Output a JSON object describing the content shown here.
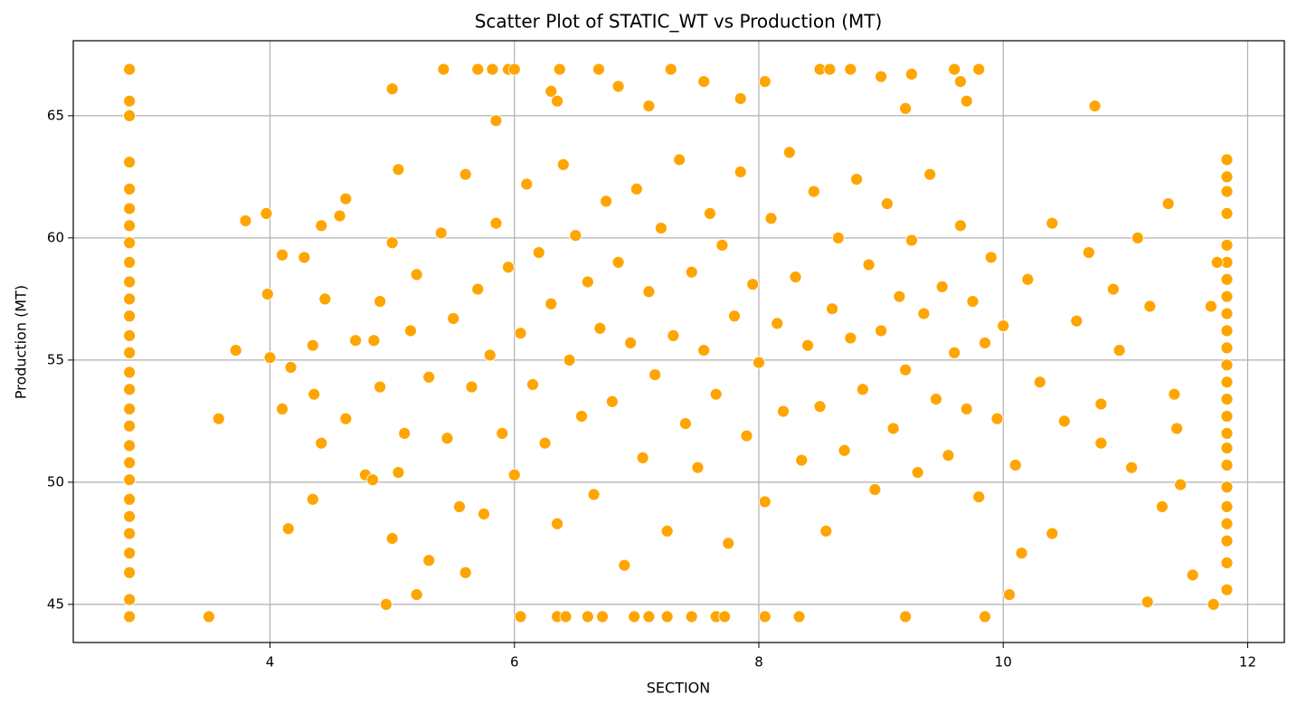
{
  "chart_data": {
    "type": "scatter",
    "title": "Scatter Plot of STATIC_WT vs Production (MT)",
    "x_label": "SECTION",
    "y_label": "Production (MT)",
    "color": "#ffa500",
    "grid": true,
    "xlim": [
      2.39,
      12.3
    ],
    "xticks": [
      4,
      6,
      8,
      10,
      12
    ],
    "ylim": [
      43.44,
      68.07
    ],
    "yticks": [
      45,
      50,
      55,
      60,
      65
    ],
    "x": [
      2.85,
      2.85,
      2.85,
      2.85,
      2.85,
      2.85,
      2.85,
      2.85,
      2.85,
      2.85,
      2.85,
      2.85,
      2.85,
      2.85,
      2.85,
      2.85,
      2.85,
      2.85,
      2.85,
      2.85,
      2.85,
      2.85,
      2.85,
      2.85,
      2.85,
      2.85,
      2.85,
      2.85,
      11.83,
      11.83,
      11.83,
      11.83,
      11.83,
      11.83,
      11.83,
      11.83,
      11.83,
      11.83,
      11.83,
      11.83,
      11.83,
      11.83,
      11.83,
      11.83,
      11.83,
      11.83,
      11.83,
      11.83,
      11.83,
      11.83,
      11.83,
      11.83,
      3.5,
      6.05,
      6.35,
      6.42,
      6.6,
      6.72,
      6.98,
      7.1,
      7.25,
      7.45,
      7.65,
      7.72,
      8.05,
      8.33,
      9.2,
      9.85,
      5.42,
      5.7,
      5.82,
      5.95,
      6.0,
      6.37,
      6.69,
      7.28,
      8.5,
      8.58,
      8.75,
      9.6,
      9.8,
      3.58,
      3.72,
      3.8,
      3.97,
      3.98,
      4.0,
      4.1,
      4.1,
      4.15,
      4.17,
      4.28,
      4.35,
      4.36,
      4.35,
      4.42,
      4.42,
      4.45,
      4.57,
      4.62,
      4.62,
      4.7,
      4.78,
      4.84,
      4.9,
      4.95,
      5.0,
      5.05,
      5.0,
      5.2,
      5.3,
      5.6,
      10.05,
      10.15,
      10.4,
      10.75,
      11.18,
      11.3,
      11.35,
      11.45,
      11.55,
      11.7,
      11.72,
      11.75,
      10.8,
      10.95,
      11.05,
      11.1,
      11.2,
      11.4,
      11.42,
      9.0,
      9.25,
      9.65,
      8.05,
      7.55,
      6.85,
      6.3,
      7.1,
      9.2,
      9.7,
      7.85,
      6.35,
      5.85,
      5.2,
      5.3,
      5.4,
      5.45,
      5.5,
      5.55,
      5.6,
      5.65,
      5.7,
      5.75,
      5.8,
      5.85,
      5.9,
      5.95,
      6.0,
      6.05,
      6.1,
      6.15,
      6.2,
      6.25,
      6.3,
      6.35,
      6.4,
      6.45,
      6.5,
      6.55,
      6.6,
      6.65,
      6.7,
      6.75,
      6.8,
      6.85,
      6.9,
      6.95,
      7.0,
      7.05,
      7.1,
      7.15,
      7.2,
      7.25,
      7.3,
      7.35,
      7.4,
      7.45,
      7.5,
      7.55,
      7.6,
      7.65,
      7.7,
      7.75,
      7.8,
      7.85,
      7.9,
      7.95,
      8.0,
      8.05,
      8.1,
      8.15,
      8.2,
      8.25,
      8.3,
      8.35,
      8.4,
      8.45,
      8.5,
      8.55,
      8.6,
      8.65,
      8.7,
      8.75,
      8.8,
      8.85,
      8.9,
      8.95,
      9.0,
      9.05,
      9.1,
      9.15,
      9.2,
      9.25,
      9.3,
      9.35,
      9.4,
      9.45,
      9.5,
      9.55,
      9.6,
      9.65,
      9.7,
      9.75,
      9.8,
      9.85,
      9.9,
      9.95,
      10.0,
      10.1,
      10.2,
      10.3,
      10.4,
      10.5,
      10.6,
      10.7,
      10.8,
      10.9,
      5.1,
      5.15,
      5.0,
      4.9,
      4.85,
      5.05
    ],
    "y": [
      66.9,
      65.6,
      65.0,
      63.1,
      62.0,
      61.2,
      60.5,
      59.8,
      59.0,
      58.2,
      57.5,
      56.8,
      56.0,
      55.3,
      54.5,
      53.8,
      53.0,
      52.3,
      51.5,
      50.8,
      50.1,
      49.3,
      48.6,
      47.9,
      47.1,
      46.3,
      45.2,
      44.5,
      63.2,
      62.5,
      61.9,
      61.0,
      59.7,
      59.0,
      58.3,
      57.6,
      56.9,
      56.2,
      55.5,
      54.8,
      54.1,
      53.4,
      52.7,
      52.0,
      51.4,
      50.7,
      49.8,
      49.0,
      48.3,
      47.6,
      46.7,
      45.6,
      44.5,
      44.5,
      44.5,
      44.5,
      44.5,
      44.5,
      44.5,
      44.5,
      44.5,
      44.5,
      44.5,
      44.5,
      44.5,
      44.5,
      44.5,
      44.5,
      66.9,
      66.9,
      66.9,
      66.9,
      66.9,
      66.9,
      66.9,
      66.9,
      66.9,
      66.9,
      66.9,
      66.9,
      66.9,
      52.6,
      55.4,
      60.7,
      61.0,
      57.7,
      55.1,
      53.0,
      59.3,
      48.1,
      54.7,
      59.2,
      49.3,
      53.6,
      55.6,
      51.6,
      60.5,
      57.5,
      60.9,
      61.6,
      52.6,
      55.8,
      50.3,
      50.1,
      57.4,
      45.0,
      66.1,
      62.8,
      47.7,
      45.4,
      46.8,
      46.3,
      45.4,
      47.1,
      47.9,
      65.4,
      45.1,
      49.0,
      61.4,
      49.9,
      46.2,
      57.2,
      45.0,
      59.0,
      51.6,
      55.4,
      50.6,
      60.0,
      57.2,
      53.6,
      52.2,
      66.6,
      66.7,
      66.4,
      66.4,
      66.4,
      66.2,
      66.0,
      65.4,
      65.3,
      65.6,
      65.7,
      65.6,
      64.8,
      58.5,
      54.3,
      60.2,
      51.8,
      56.7,
      49.0,
      62.6,
      53.9,
      57.9,
      48.7,
      55.2,
      60.6,
      52.0,
      58.8,
      50.3,
      56.1,
      62.2,
      54.0,
      59.4,
      51.6,
      57.3,
      48.3,
      63.0,
      55.0,
      60.1,
      52.7,
      58.2,
      49.5,
      56.3,
      61.5,
      53.3,
      59.0,
      46.6,
      55.7,
      62.0,
      51.0,
      57.8,
      54.4,
      60.4,
      48.0,
      56.0,
      63.2,
      52.4,
      58.6,
      50.6,
      55.4,
      61.0,
      53.6,
      59.7,
      47.5,
      56.8,
      62.7,
      51.9,
      58.1,
      54.9,
      49.2,
      60.8,
      56.5,
      52.9,
      63.5,
      58.4,
      50.9,
      55.6,
      61.9,
      53.1,
      48.0,
      57.1,
      60.0,
      51.3,
      55.9,
      62.4,
      53.8,
      58.9,
      49.7,
      56.2,
      61.4,
      52.2,
      57.6,
      54.6,
      59.9,
      50.4,
      56.9,
      62.6,
      53.4,
      58.0,
      51.1,
      55.3,
      60.5,
      53.0,
      57.4,
      49.4,
      55.7,
      59.2,
      52.6,
      56.4,
      50.7,
      58.3,
      54.1,
      60.6,
      52.5,
      56.6,
      59.4,
      53.2,
      57.9,
      52.0,
      56.2,
      59.8,
      53.9,
      55.8,
      50.4
    ]
  }
}
